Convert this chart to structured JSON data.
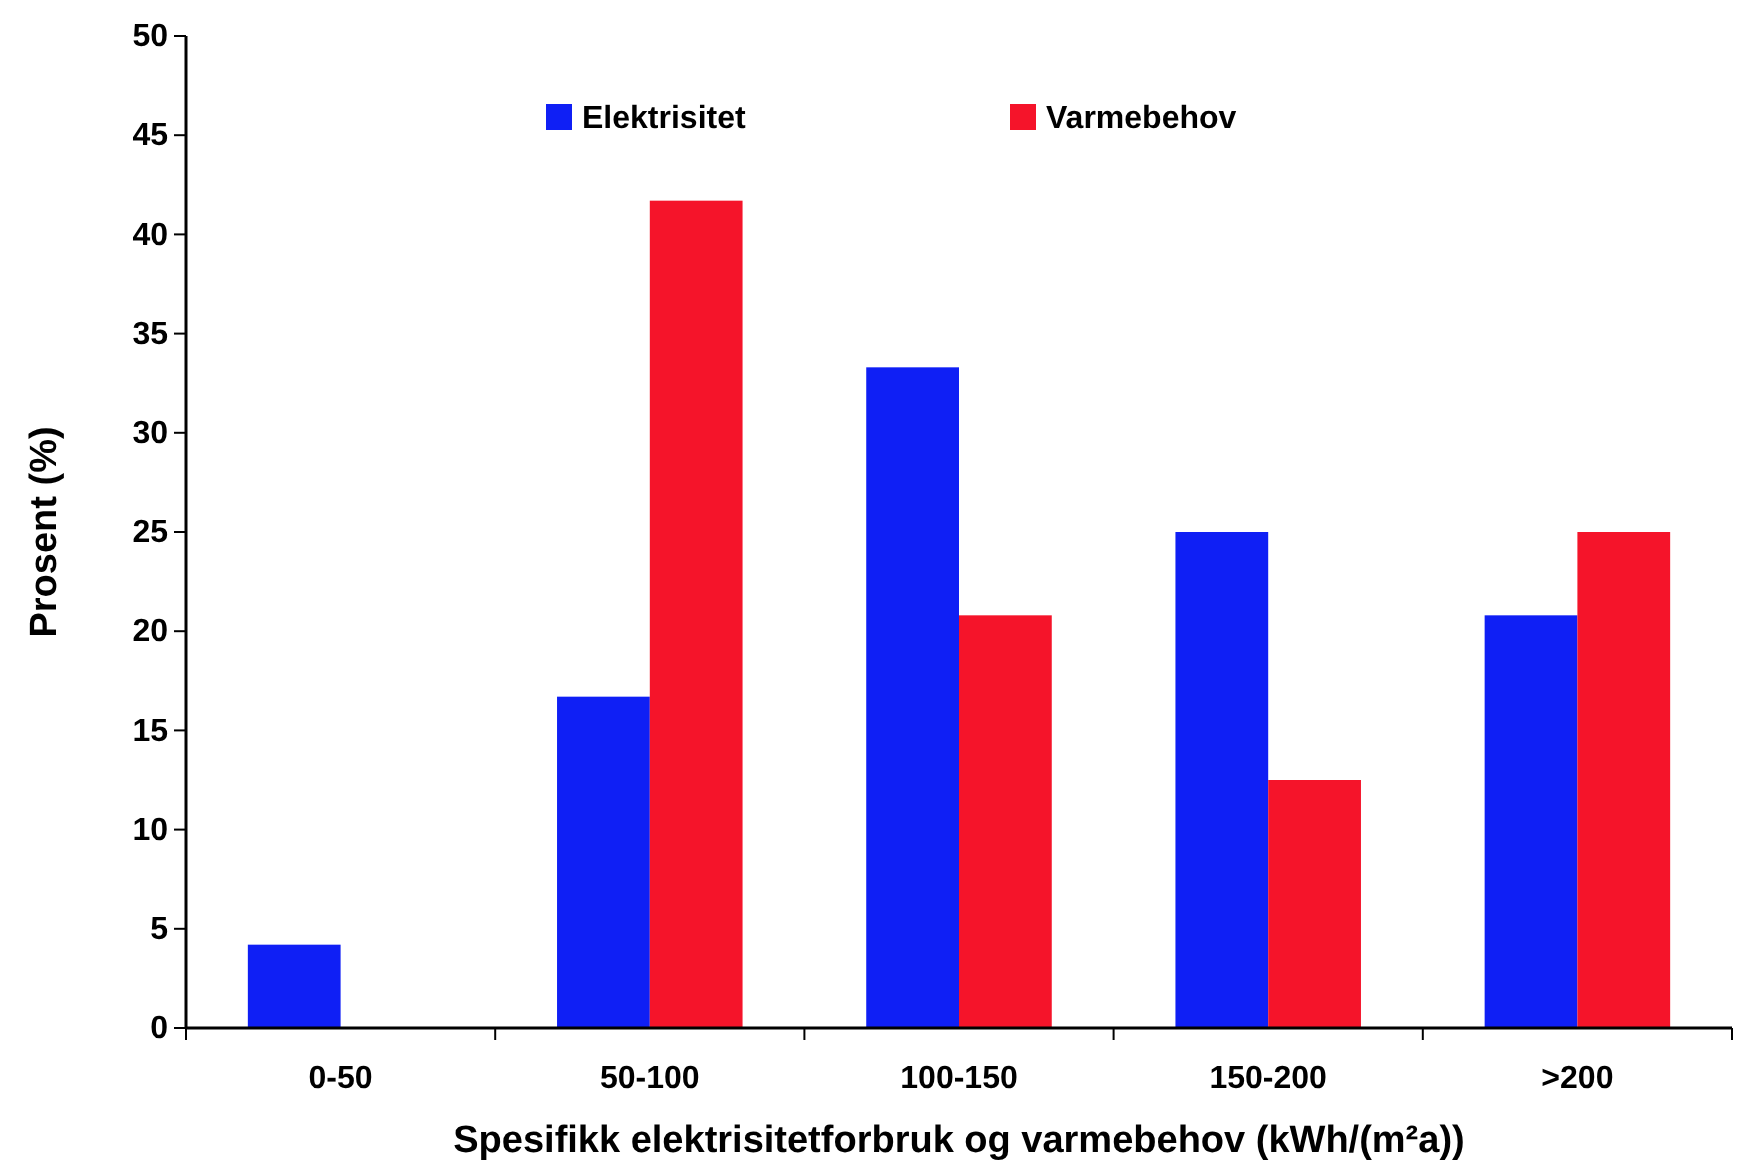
{
  "chart_data": {
    "type": "bar",
    "xlabel": "Spesifikk elektrisitetforbruk og varmebehov (kWh/(m²a))",
    "ylabel": "Prosent (%)",
    "categories": [
      "0-50",
      "50-100",
      "100-150",
      "150-200",
      ">200"
    ],
    "series": [
      {
        "name": "Elektrisitet",
        "color": "#0f1ff5",
        "values": [
          4.2,
          16.7,
          33.3,
          25,
          20.8
        ]
      },
      {
        "name": "Varmebehov",
        "color": "#f5142a",
        "values": [
          0,
          41.7,
          20.8,
          12.5,
          25
        ]
      }
    ],
    "ylim": [
      0,
      50
    ],
    "yticks": [
      0,
      5,
      10,
      15,
      20,
      25,
      30,
      35,
      40,
      45,
      50
    ],
    "legend": "top",
    "grid": false
  }
}
